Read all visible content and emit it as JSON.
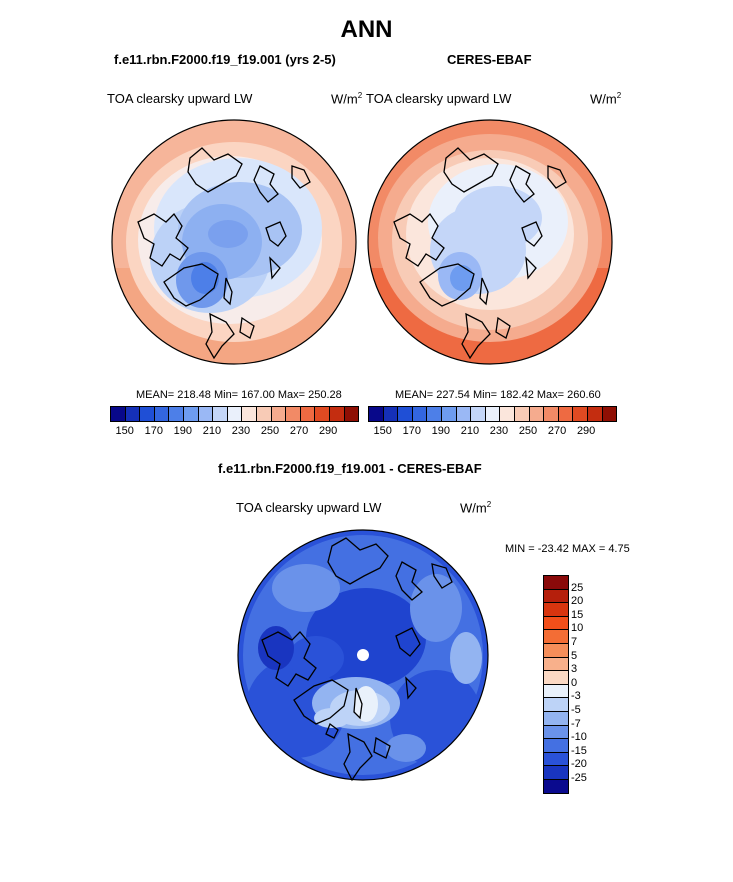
{
  "title": "ANN",
  "panel_left": {
    "case_title": "f.e11.rbn.F2000.f19_f19.001 (yrs 2-5)",
    "variable": "TOA clearsky upward LW",
    "units_base": "W/m",
    "units_exp": "2",
    "stats": "MEAN= 218.48  Min= 167.00  Max= 250.28"
  },
  "panel_right": {
    "case_title": "CERES-EBAF",
    "variable": "TOA clearsky upward LW",
    "units_base": "W/m",
    "units_exp": "2",
    "stats": "MEAN= 227.54  Min= 182.42  Max= 260.60"
  },
  "panel_diff": {
    "case_title": "f.e11.rbn.F2000.f19_f19.001 - CERES-EBAF",
    "variable": "TOA clearsky upward LW",
    "units_base": "W/m",
    "units_exp": "2",
    "minmax": "MIN = -23.42 MAX =   4.75"
  },
  "colorbar_top": {
    "ticks": [
      "150",
      "170",
      "190",
      "210",
      "230",
      "250",
      "270",
      "290"
    ],
    "colors": [
      "#08088a",
      "#1530b8",
      "#1f4fd6",
      "#3366e0",
      "#4d7fe8",
      "#6e9cf0",
      "#9ab8f5",
      "#c4d6f8",
      "#eaf0fb",
      "#fbe6dc",
      "#f8cbb6",
      "#f5ab8e",
      "#f28a66",
      "#ee6a42",
      "#e04a22",
      "#c42d10",
      "#8f0f04"
    ]
  },
  "colorbar_diff": {
    "ticks": [
      "25",
      "20",
      "15",
      "10",
      "7",
      "5",
      "3",
      "0",
      "-3",
      "-5",
      "-7",
      "-10",
      "-15",
      "-20",
      "-25"
    ],
    "colors": [
      "#8a0a0a",
      "#b51f0c",
      "#d8350f",
      "#f24f1a",
      "#f36d35",
      "#f58e5a",
      "#f8b08b",
      "#fbd9c4",
      "#e9f1fb",
      "#bdd3f7",
      "#93b4f1",
      "#6a92ea",
      "#4470e2",
      "#2a52d8",
      "#1935c0",
      "#0a0a8e"
    ]
  }
}
